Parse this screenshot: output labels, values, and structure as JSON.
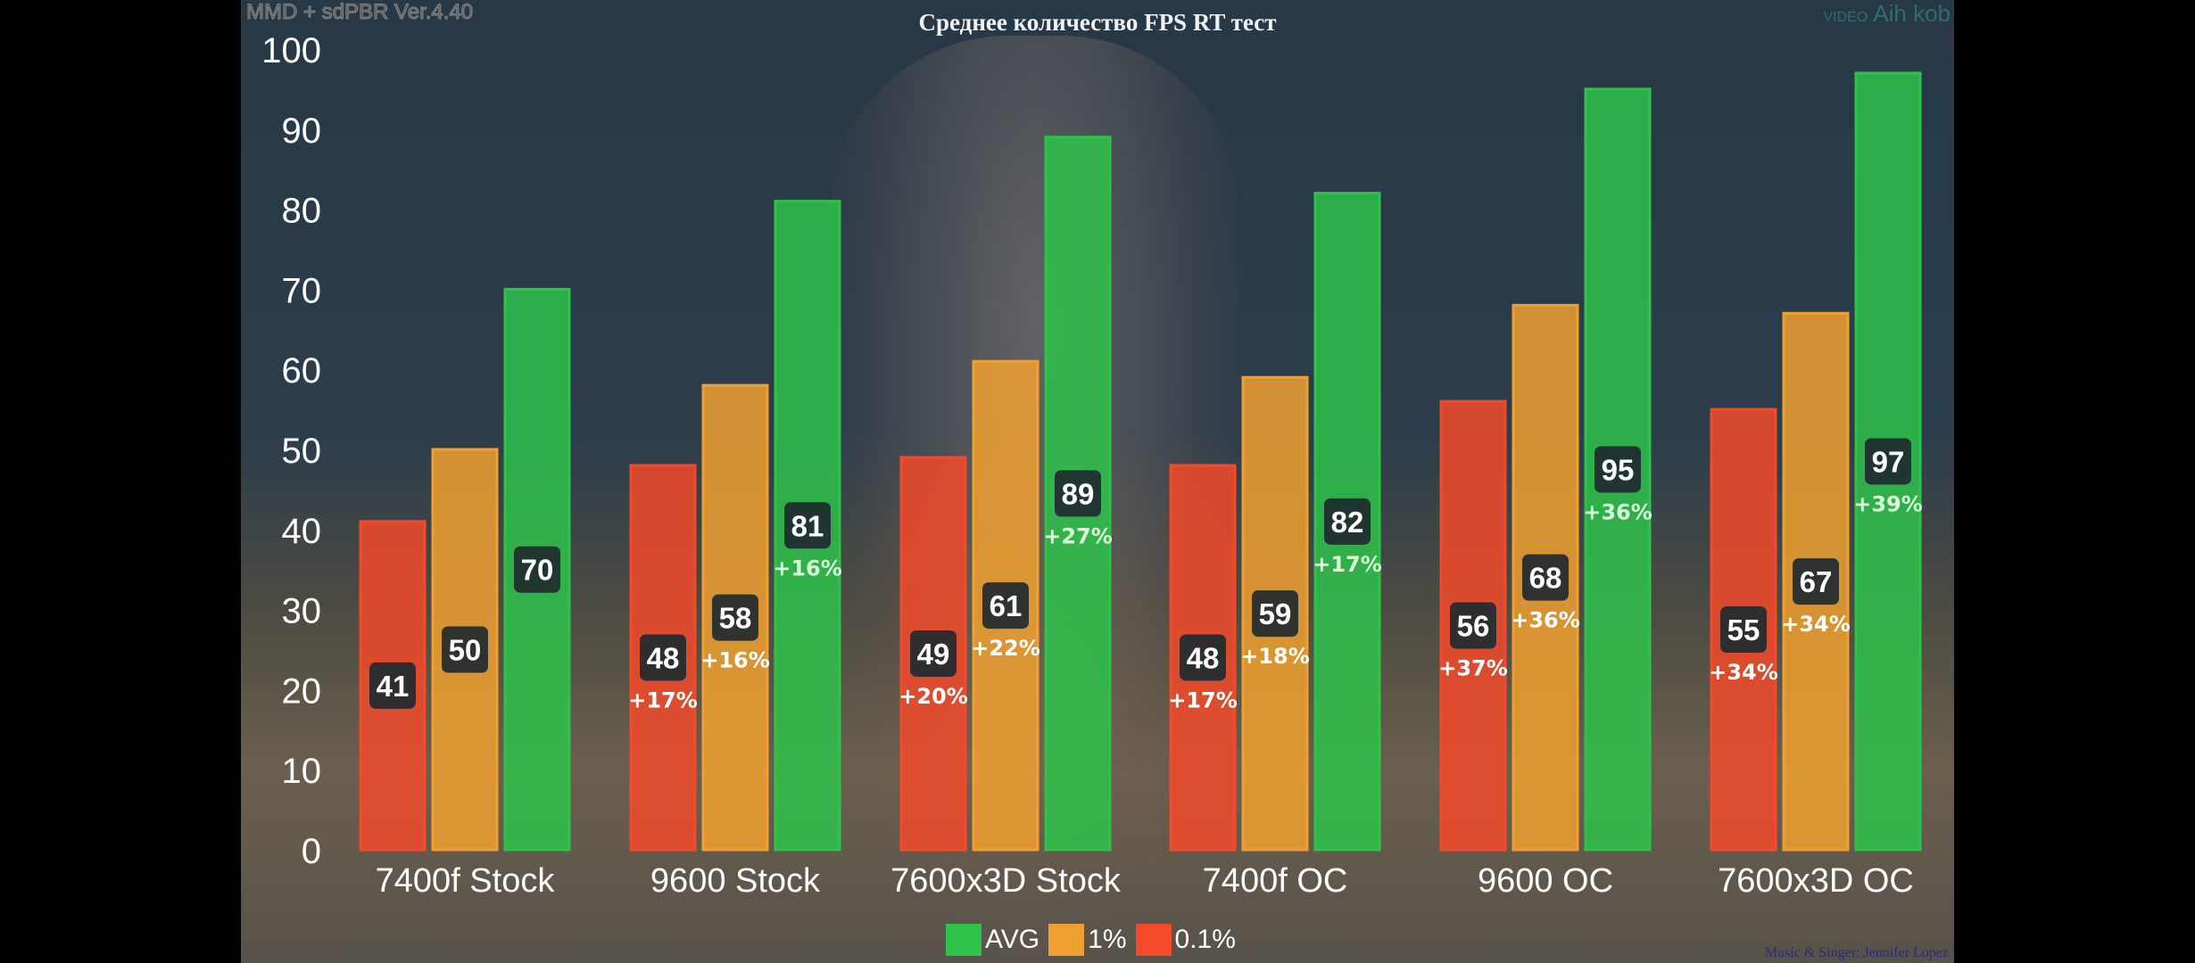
{
  "overlay": {
    "watermark_left": "MMD + sdPBR Ver.4.40",
    "watermark_right_small": "VIDEO",
    "watermark_right": "Aih kob",
    "credits": "Music & Singer: Jennifer Lopez"
  },
  "chart_data": {
    "type": "bar",
    "title": "Среднее количество FPS RT тест",
    "xlabel": "",
    "ylabel": "",
    "ylim": [
      0,
      100
    ],
    "yticks": [
      0,
      10,
      20,
      30,
      40,
      50,
      60,
      70,
      80,
      90,
      100
    ],
    "grid": false,
    "legend_position": "bottom",
    "categories": [
      "7400f Stock",
      "9600 Stock",
      "7600x3D Stock",
      "7400f OC",
      "9600 OC",
      "7600x3D OC"
    ],
    "series": [
      {
        "name": "0.1%",
        "color": "#f24a2a",
        "values": [
          41,
          48,
          49,
          48,
          56,
          55
        ],
        "annotations": [
          "",
          "+17%",
          "+20%",
          "+17%",
          "+37%",
          "+34%"
        ]
      },
      {
        "name": "1%",
        "color": "#f0a030",
        "values": [
          50,
          58,
          61,
          59,
          68,
          67
        ],
        "annotations": [
          "",
          "+16%",
          "+22%",
          "+18%",
          "+36%",
          "+34%"
        ]
      },
      {
        "name": "AVG",
        "color": "#2ec24a",
        "values": [
          70,
          81,
          89,
          82,
          95,
          97
        ],
        "annotations": [
          "",
          "+16%",
          "+27%",
          "+17%",
          "+36%",
          "+39%"
        ]
      }
    ],
    "legend_order": [
      "AVG",
      "1%",
      "0.1%"
    ]
  }
}
